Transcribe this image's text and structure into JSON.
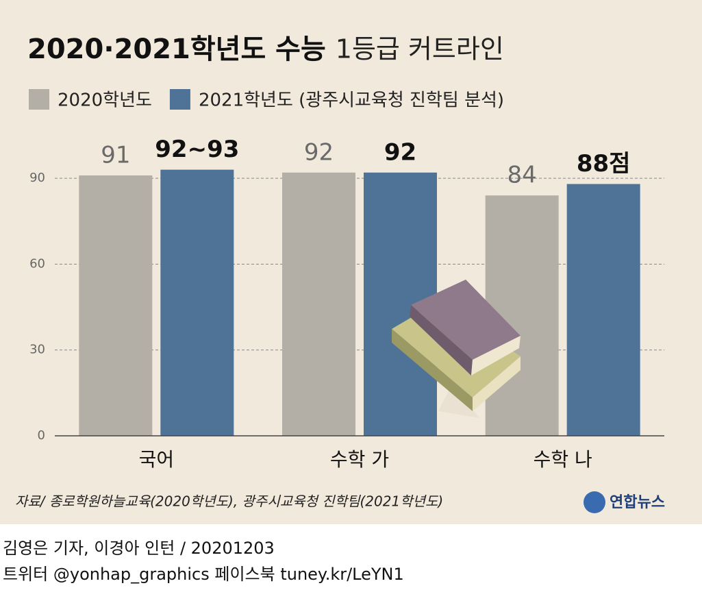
{
  "chart_data": {
    "type": "bar",
    "title": "2020·2021학년도 수능",
    "subtitle": "1등급 커트라인",
    "categories": [
      "국어",
      "수학 가",
      "수학 나"
    ],
    "series": [
      {
        "name": "2020학년도",
        "color": "#b3aea6",
        "values": [
          91,
          92,
          84
        ]
      },
      {
        "name": "2021학년도 (광주시교육청 진학팀 분석)",
        "color": "#4e7397",
        "values": [
          93,
          92,
          88
        ],
        "value_labels": [
          "92~93",
          "92",
          "88점"
        ]
      }
    ],
    "ylim": [
      0,
      108
    ],
    "yticks": [
      0,
      30,
      60,
      90
    ],
    "grid": true,
    "source": "자료/ 종로학원하늘교육(2020학년도), 광주시교육청 진학팀(2021학년도)",
    "logo": "연합뉴스"
  },
  "footer": {
    "credit": "김영은 기자, 이경아 인턴 / 20201203",
    "social": "트위터 @yonhap_graphics  페이스북 tuney.kr/LeYN1"
  }
}
